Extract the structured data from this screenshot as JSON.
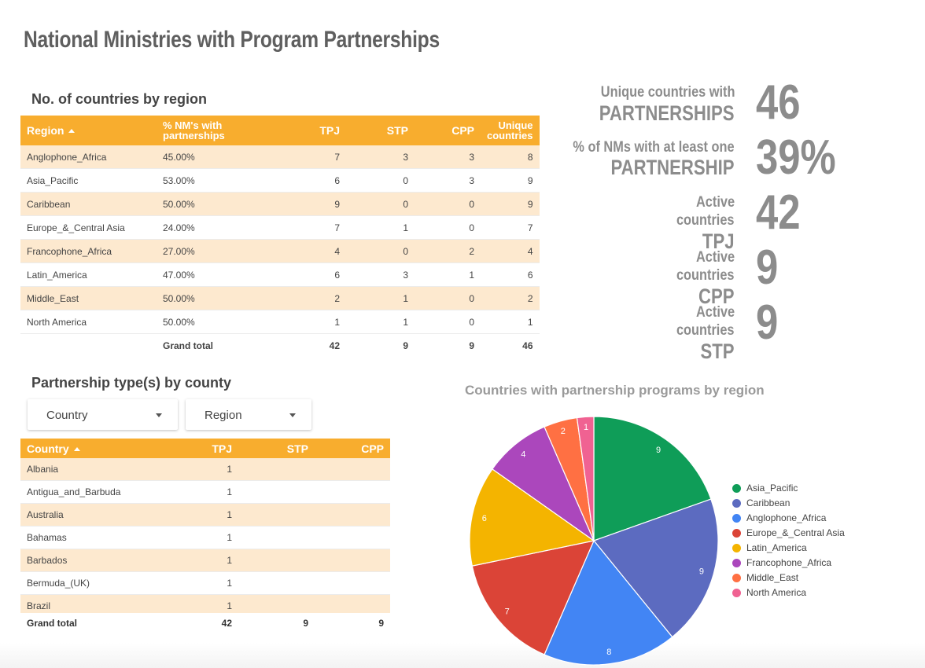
{
  "page": {
    "title": "National Ministries with Program Partnerships"
  },
  "region_table": {
    "title": "No. of countries by region",
    "columns": [
      "Region",
      "% NM's with partnerships",
      "TPJ",
      "STP",
      "CPP",
      "Unique countries"
    ],
    "sort_column": "Region",
    "sort_direction": "ascending",
    "rows": [
      [
        "Anglophone_Africa",
        "45.00%",
        "7",
        "3",
        "3",
        "8"
      ],
      [
        "Asia_Pacific",
        "53.00%",
        "6",
        "0",
        "3",
        "9"
      ],
      [
        "Caribbean",
        "50.00%",
        "9",
        "0",
        "0",
        "9"
      ],
      [
        "Europe_&_Central Asia",
        "24.00%",
        "7",
        "1",
        "0",
        "7"
      ],
      [
        "Francophone_Africa",
        "27.00%",
        "4",
        "0",
        "2",
        "4"
      ],
      [
        "Latin_America",
        "47.00%",
        "6",
        "3",
        "1",
        "6"
      ],
      [
        "Middle_East",
        "50.00%",
        "2",
        "1",
        "0",
        "2"
      ],
      [
        "North America",
        "50.00%",
        "1",
        "1",
        "0",
        "1"
      ]
    ],
    "total": {
      "label": "Grand total",
      "tpj": "42",
      "stp": "9",
      "cpp": "9",
      "unique": "46"
    }
  },
  "kpis": [
    {
      "line1": "Unique countries with",
      "line2": "PARTNERSHIPS",
      "value": "46"
    },
    {
      "line1": "% of NMs with at least  one",
      "line2": "PARTNERSHIP",
      "value": "39%"
    },
    {
      "line1": "Active",
      "line2": "countries",
      "line3": "TPJ",
      "value": "42"
    },
    {
      "line1": "Active",
      "line2": "countries",
      "line3": "CPP",
      "value": "9"
    },
    {
      "line1": "Active",
      "line2": "countries",
      "line3": "STP",
      "value": "9"
    }
  ],
  "country_section": {
    "title": "Partnership type(s) by county",
    "filters": [
      {
        "label": "Country"
      },
      {
        "label": "Region"
      }
    ]
  },
  "country_table": {
    "columns": [
      "Country",
      "TPJ",
      "STP",
      "CPP"
    ],
    "sort_column": "Country",
    "sort_direction": "ascending",
    "rows": [
      [
        "Albania",
        "1",
        "",
        ""
      ],
      [
        "Antigua_and_Barbuda",
        "1",
        "",
        ""
      ],
      [
        "Australia",
        "1",
        "",
        ""
      ],
      [
        "Bahamas",
        "1",
        "",
        ""
      ],
      [
        "Barbados",
        "1",
        "",
        ""
      ],
      [
        "Bermuda_(UK)",
        "1",
        "",
        ""
      ],
      [
        "Brazil",
        "1",
        "",
        ""
      ]
    ],
    "total": {
      "label": "Grand total",
      "tpj": "42",
      "stp": "9",
      "cpp": "9"
    }
  },
  "chart_data": {
    "type": "pie",
    "title": "Countries with partnership programs by region",
    "legend_position": "right",
    "slices": [
      {
        "label": "Asia_Pacific",
        "value": 9,
        "color": "#0f9d58"
      },
      {
        "label": "Caribbean",
        "value": 9,
        "color": "#5c6bc0"
      },
      {
        "label": "Anglophone_Africa",
        "value": 8,
        "color": "#4285f4"
      },
      {
        "label": "Europe_&_Central Asia",
        "value": 7,
        "color": "#db4437"
      },
      {
        "label": "Latin_America",
        "value": 6,
        "color": "#f4b400"
      },
      {
        "label": "Francophone_Africa",
        "value": 4,
        "color": "#ab47bc"
      },
      {
        "label": "Middle_East",
        "value": 2,
        "color": "#ff7043"
      },
      {
        "label": "North America",
        "value": 1,
        "color": "#f06292"
      }
    ]
  },
  "colors": {
    "header": "#f8ad2e",
    "band": "#fde9cf",
    "kpi_text": "#8c8c8c"
  }
}
